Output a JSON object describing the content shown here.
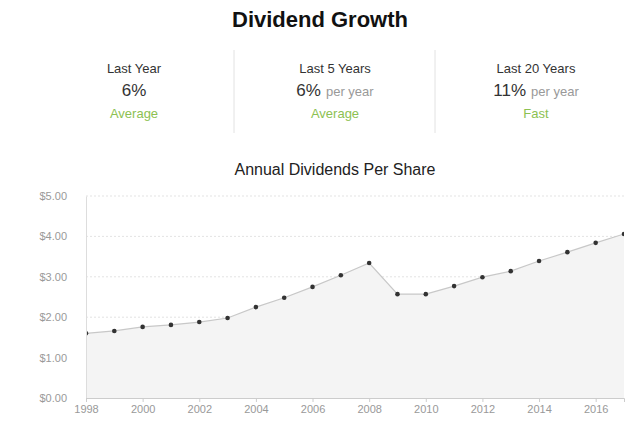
{
  "header": {
    "title": "Dividend Growth"
  },
  "stats": [
    {
      "period": "Last Year",
      "value": "6%",
      "rating": "Average"
    },
    {
      "period": "Last 5 Years",
      "value": "6%",
      "suffix": "per year",
      "rating": "Average"
    },
    {
      "period": "Last 20 Years",
      "value": "11%",
      "suffix": "per year",
      "rating": "Fast"
    }
  ],
  "chart_data": {
    "type": "line",
    "title": "Annual Dividends Per Share",
    "x": [
      1998,
      1999,
      2000,
      2001,
      2002,
      2003,
      2004,
      2005,
      2006,
      2007,
      2008,
      2009,
      2010,
      2011,
      2012,
      2013,
      2014,
      2015,
      2016,
      2017
    ],
    "values": [
      1.6,
      1.66,
      1.76,
      1.81,
      1.88,
      1.98,
      2.25,
      2.48,
      2.75,
      3.04,
      3.34,
      2.57,
      2.57,
      2.77,
      2.99,
      3.14,
      3.39,
      3.61,
      3.84,
      4.06
    ],
    "color": "#c8c8c8",
    "marker": "circle",
    "xlim": [
      1998,
      2017
    ],
    "xticks": [
      1998,
      2000,
      2002,
      2004,
      2006,
      2008,
      2010,
      2012,
      2014,
      2016
    ],
    "ylim": [
      0,
      5
    ],
    "yticks": [
      {
        "value": 0,
        "label": "$0.00"
      },
      {
        "value": 1,
        "label": "$1.00"
      },
      {
        "value": 2,
        "label": "$2.00"
      },
      {
        "value": 3,
        "label": "$3.00"
      },
      {
        "value": 4,
        "label": "$4.00"
      },
      {
        "value": 5,
        "label": "$5.00"
      }
    ],
    "grid": true
  }
}
